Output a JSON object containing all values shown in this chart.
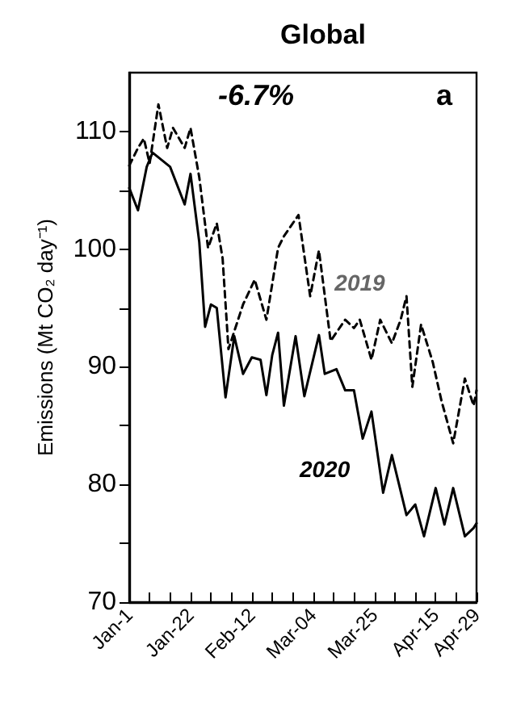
{
  "chart_data": {
    "type": "line",
    "title": "Global",
    "ylabel": "Emissions (Mt CO₂ day⁻¹)",
    "annotations": [
      "-6.7%",
      "a"
    ],
    "xlim": [
      "--01-01",
      "--04-29"
    ],
    "xticks": [
      {
        "value": "--01-01",
        "label": "Jan-1"
      },
      {
        "value": "--01-08",
        "label": null
      },
      {
        "value": "--01-15",
        "label": null
      },
      {
        "value": "--01-22",
        "label": "Jan-22"
      },
      {
        "value": "--01-29",
        "label": null
      },
      {
        "value": "--02-05",
        "label": null
      },
      {
        "value": "--02-12",
        "label": "Feb-12"
      },
      {
        "value": "--02-19",
        "label": null
      },
      {
        "value": "--02-26",
        "label": null
      },
      {
        "value": "--03-04",
        "label": "Mar-04"
      },
      {
        "value": "--03-11",
        "label": null
      },
      {
        "value": "--03-18",
        "label": null
      },
      {
        "value": "--03-25",
        "label": "Mar-25"
      },
      {
        "value": "--04-01",
        "label": null
      },
      {
        "value": "--04-08",
        "label": null
      },
      {
        "value": "--04-15",
        "label": "Apr-15"
      },
      {
        "value": "--04-22",
        "label": null
      },
      {
        "value": "--04-29",
        "label": "Apr-29"
      }
    ],
    "ylim": [
      70,
      115
    ],
    "yticks": [
      70,
      {
        "value": 75,
        "label": null
      },
      80,
      {
        "value": 85,
        "label": null
      },
      90,
      {
        "value": 95,
        "label": null
      },
      100,
      {
        "value": 105,
        "label": null
      },
      110
    ],
    "grid": false,
    "legend": false,
    "marker": "none",
    "series": [
      {
        "name": "2019",
        "color": "#000000",
        "line_style": "dashed",
        "x": [
          "--01-01",
          "--01-04",
          "--01-06",
          "--01-08",
          "--01-11",
          "--01-14",
          "--01-16",
          "--01-20",
          "--01-22",
          "--01-25",
          "--01-28",
          "--01-31",
          "--02-02",
          "--02-04",
          "--02-09",
          "--02-13",
          "--02-17",
          "--02-21",
          "--02-23",
          "--02-28",
          "--03-03",
          "--03-06",
          "--03-10",
          "--03-15",
          "--03-18",
          "--03-20",
          "--03-24",
          "--03-27",
          "--03-31",
          "--04-03",
          "--04-05",
          "--04-07",
          "--04-10",
          "--04-14",
          "--04-17",
          "--04-21",
          "--04-25",
          "--04-28",
          "--04-29"
        ],
        "values": [
          107.1,
          108.6,
          109.4,
          107.3,
          112.3,
          108.6,
          110.3,
          108.6,
          110.3,
          106.1,
          100.1,
          102.2,
          99.2,
          91.5,
          95.3,
          97.4,
          94,
          100.1,
          101.1,
          102.9,
          96,
          99.9,
          92.2,
          94,
          93.3,
          94,
          90.6,
          94,
          92,
          94,
          96,
          88.3,
          93.6,
          90.4,
          87.1,
          83.5,
          89,
          86.7,
          88
        ]
      },
      {
        "name": "2020",
        "color": "#000000",
        "line_style": "solid",
        "x": [
          "--01-01",
          "--01-04",
          "--01-07",
          "--01-09",
          "--01-15",
          "--01-20",
          "--01-22",
          "--01-25",
          "--01-27",
          "--01-29",
          "--01-31",
          "--02-03",
          "--02-06",
          "--02-09",
          "--02-12",
          "--02-15",
          "--02-17",
          "--02-19",
          "--02-21",
          "--02-23",
          "--02-27",
          "--03-01",
          "--03-06",
          "--03-08",
          "--03-12",
          "--03-15",
          "--03-18",
          "--03-21",
          "--03-24",
          "--03-28",
          "--03-31",
          "--04-05",
          "--04-08",
          "--04-11",
          "--04-15",
          "--04-18",
          "--04-21",
          "--04-25",
          "--04-28",
          "--04-29"
        ],
        "values": [
          105.2,
          103.3,
          107,
          108.2,
          107,
          103.8,
          106.4,
          100.6,
          93.4,
          95.3,
          95,
          87.4,
          92.6,
          89.4,
          90.8,
          90.6,
          87.6,
          91,
          92.9,
          86.7,
          92.6,
          87.5,
          92.7,
          89.4,
          89.8,
          88,
          88,
          83.9,
          86.2,
          79.3,
          82.5,
          77.4,
          78.3,
          75.6,
          79.7,
          76.6,
          79.7,
          75.6,
          76.3,
          76.7
        ]
      }
    ]
  }
}
